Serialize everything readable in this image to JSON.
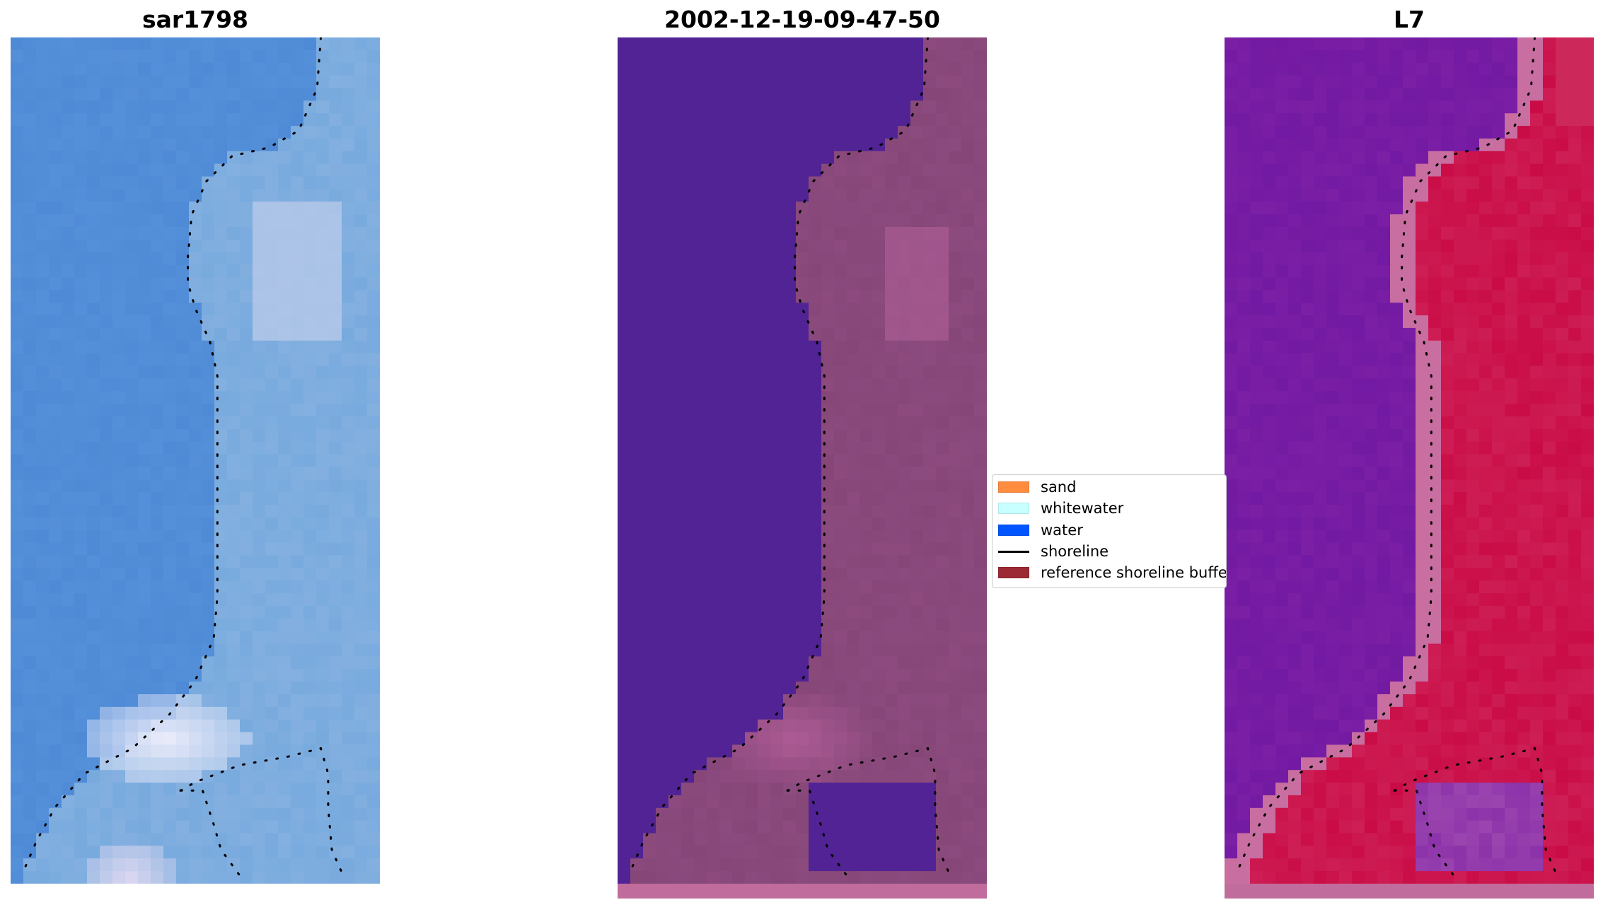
{
  "panels": [
    {
      "title": "sar1798",
      "style": "rgb"
    },
    {
      "title": "2002-12-19-09-47-50",
      "style": "classified"
    },
    {
      "title": "L7",
      "style": "index"
    }
  ],
  "legend": {
    "items": [
      {
        "label": "sand",
        "kind": "patch",
        "color": "#ff8c3f"
      },
      {
        "label": "whitewater",
        "kind": "patch",
        "color": "#c8ffff"
      },
      {
        "label": "water",
        "kind": "patch",
        "color": "#0055ff"
      },
      {
        "label": "shoreline",
        "kind": "line",
        "color": "#000000"
      },
      {
        "label": "reference shoreline buffer",
        "kind": "patch",
        "color": "#9b2a35"
      }
    ]
  },
  "colors": {
    "rgb_water": "#4f8ad6",
    "rgb_beach": "#7fb0de",
    "class_water": "#512394",
    "class_land": "#864778",
    "index_low": "#7b1fa5",
    "index_high": "#c8003c",
    "shoreline": "#000000"
  }
}
